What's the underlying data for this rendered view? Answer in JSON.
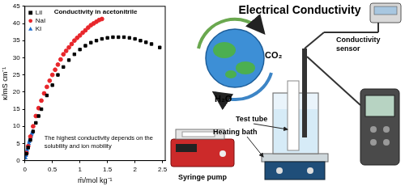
{
  "chart_data": {
    "type": "scatter",
    "x_label": "m̄/mol kg⁻¹",
    "y_label": "κ/mS cm⁻¹",
    "annotations": [
      "Conductivity in acetonitrile",
      "The highest conductivity depends on the solubility and ion mobility"
    ],
    "xlim": [
      0,
      2.55
    ],
    "xticks": [
      0,
      0.5,
      1,
      1.5,
      2,
      2.5
    ],
    "ylim": [
      0,
      45
    ],
    "yticks": [
      0,
      5,
      10,
      15,
      20,
      25,
      30,
      35,
      40,
      45
    ],
    "grid": false,
    "legend": "upper left",
    "series": [
      {
        "name": "LiI",
        "color": "#000000",
        "marker": "square",
        "x": [
          0.03,
          0.06,
          0.1,
          0.15,
          0.2,
          0.25,
          0.3,
          0.4,
          0.5,
          0.6,
          0.7,
          0.8,
          0.9,
          1.0,
          1.1,
          1.2,
          1.3,
          1.4,
          1.5,
          1.6,
          1.7,
          1.8,
          1.9,
          2.0,
          2.1,
          2.2,
          2.3,
          2.45
        ],
        "values": [
          2,
          3.8,
          6,
          8.5,
          11,
          13,
          15,
          19,
          22,
          25,
          27.3,
          29.3,
          31,
          32.4,
          33.5,
          34.4,
          35,
          35.5,
          35.8,
          36,
          36,
          36,
          35.8,
          35.5,
          35,
          34.5,
          34,
          33
        ]
      },
      {
        "name": "NaI",
        "color": "#e8262b",
        "marker": "circle",
        "x": [
          0.03,
          0.06,
          0.1,
          0.15,
          0.2,
          0.25,
          0.3,
          0.35,
          0.4,
          0.45,
          0.5,
          0.55,
          0.6,
          0.65,
          0.7,
          0.75,
          0.8,
          0.85,
          0.9,
          0.95,
          1.0,
          1.05,
          1.1,
          1.15,
          1.2,
          1.25,
          1.3,
          1.35,
          1.4
        ],
        "values": [
          2.2,
          4.2,
          7,
          10,
          13,
          15.3,
          17.5,
          19.6,
          21.5,
          23.3,
          25,
          26.5,
          28,
          29.5,
          31,
          32,
          33,
          34,
          35,
          35.8,
          36.5,
          37.3,
          38,
          38.8,
          39.5,
          40,
          40.5,
          41,
          41.3
        ]
      },
      {
        "name": "KI",
        "color": "#1f6fd1",
        "marker": "triangle",
        "x": [
          0.01,
          0.02,
          0.03,
          0.04,
          0.05,
          0.06,
          0.07,
          0.08,
          0.09,
          0.1,
          0.11,
          0.12,
          0.13,
          0.14
        ],
        "values": [
          0.8,
          1.5,
          2.3,
          3,
          3.6,
          4.2,
          4.9,
          5.5,
          6,
          6.5,
          7,
          7.5,
          8,
          8.5
        ]
      }
    ]
  },
  "illustration": {
    "title": "Electrical Conductivity",
    "globe_labels": [
      "CO₂",
      "H₂O"
    ],
    "syringe_pump": "Syringe pump",
    "test_tube": "Test tube",
    "heating_bath": "Heating bath",
    "conductivity_sensor": [
      "Conductivity",
      "sensor"
    ]
  }
}
